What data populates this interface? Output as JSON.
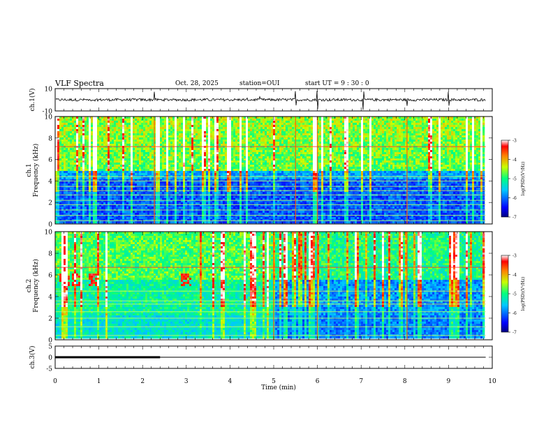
{
  "header": {
    "title": "VLF Spectra",
    "date": "Oct. 28, 2025",
    "station": "station=OUI",
    "start": "start  UT =   9 : 30 : 0"
  },
  "chart_data": [
    {
      "type": "line",
      "name": "ch1-waveform",
      "ylabel": "ch.1(V)",
      "ylim": [
        -10,
        10
      ],
      "yticks": [
        10,
        -10
      ],
      "xlim": [
        0,
        10
      ],
      "series": [
        {
          "baseline": 0,
          "noise_amplitude": 1.2,
          "spike_times_min": [
            2.27,
            5.5,
            6.0,
            7.05,
            8.05,
            9.0
          ]
        }
      ]
    },
    {
      "type": "heatmap",
      "name": "ch1-spectrogram",
      "ylabel": "ch.1\nFrequency (kHz)",
      "ylim": [
        0,
        10
      ],
      "yticks": [
        0,
        2,
        4,
        6,
        8,
        10
      ],
      "xlim": [
        0,
        10
      ],
      "data_end_min": 9.85,
      "colorbar": {
        "label": "log(PSD)(V²/Hz)",
        "range": [
          -7,
          -3
        ],
        "ticks": [
          "-3",
          "-4",
          "-5",
          "-6",
          "-7"
        ]
      },
      "features": {
        "broadband_noise_above_khz": 5.0,
        "horizontal_lines_khz": [
          0.3,
          0.8,
          1.3,
          1.8,
          2.2,
          2.7,
          3.1,
          3.5,
          4.0,
          4.4,
          7.2
        ],
        "spike_times_min": [
          2.27,
          5.5,
          6.0,
          8.05
        ]
      }
    },
    {
      "type": "heatmap",
      "name": "ch2-spectrogram",
      "ylabel": "ch.2\nFrequency (kHz)",
      "ylim": [
        0,
        10
      ],
      "yticks": [
        0,
        2,
        4,
        6,
        8,
        10
      ],
      "xlim": [
        0,
        10
      ],
      "data_end_min": 9.85,
      "colorbar": {
        "label": "log(PSD)(V²/Hz)",
        "range": [
          -7,
          -3
        ],
        "ticks": [
          "-3",
          "-4",
          "-5",
          "-6",
          "-7"
        ]
      },
      "features": {
        "intensity_drop_min": 5.0,
        "horizontal_lines_khz": [
          0.4,
          1.2,
          2.0,
          2.6,
          3.3,
          3.6,
          4.5,
          6.7
        ],
        "red_bursts_min": [
          0.2,
          0.5,
          0.9,
          3.0
        ],
        "spike_times_min": [
          5.0,
          6.0,
          8.05
        ]
      }
    },
    {
      "type": "line",
      "name": "ch3-signal",
      "ylabel": "ch.3(V)",
      "ylim": [
        -5,
        5
      ],
      "yticks": [
        5,
        0,
        -5
      ],
      "xlim": [
        0,
        10
      ],
      "xlabel": "Time (min)",
      "xticks": [
        0,
        1,
        2,
        3,
        4,
        5,
        6,
        7,
        8,
        9,
        10
      ],
      "series": [
        {
          "x": [
            0,
            9.85
          ],
          "y": [
            0,
            0
          ],
          "thick_segment_end_min": 2.4
        }
      ]
    }
  ]
}
